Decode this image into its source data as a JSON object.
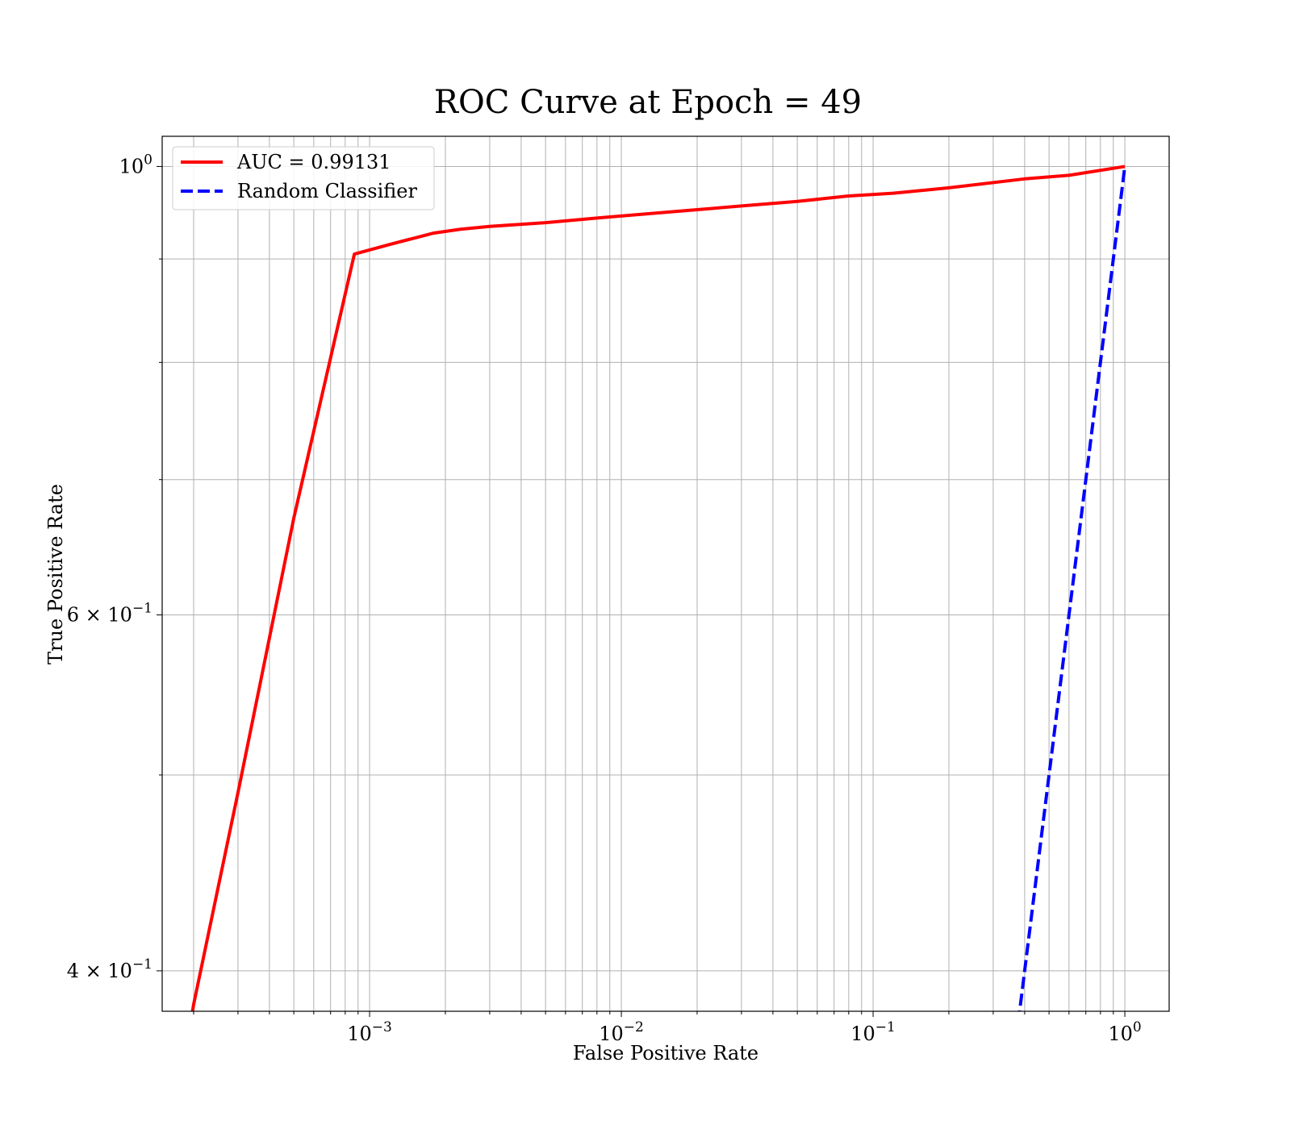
{
  "chart_data": {
    "type": "line",
    "title": "ROC Curve at Epoch = 49",
    "xlabel": "False Positive Rate",
    "ylabel": "True Positive Rate",
    "xscale": "log",
    "yscale": "log",
    "xlim": [
      0.00015,
      1.5
    ],
    "ylim": [
      0.382,
      1.035
    ],
    "grid": "both major and minor, both axes",
    "legend_position": "upper-left",
    "x_tick_labels": [
      {
        "value": 0.001,
        "base": "10",
        "exp": "−3"
      },
      {
        "value": 0.01,
        "base": "10",
        "exp": "−2"
      },
      {
        "value": 0.1,
        "base": "10",
        "exp": "−1"
      },
      {
        "value": 1,
        "base": "10",
        "exp": "0"
      }
    ],
    "y_tick_labels": [
      {
        "value": 1.0,
        "base": "10",
        "exp": "0"
      },
      {
        "value": 0.6,
        "base": "6 × 10",
        "exp": "−1"
      },
      {
        "value": 0.4,
        "base": "4 × 10",
        "exp": "−1"
      }
    ],
    "series": [
      {
        "name": "AUC = 0.99131",
        "color": "#ff0000",
        "dash": "solid",
        "points": [
          [
            0.00019,
            0.37
          ],
          [
            0.0002,
            0.385
          ],
          [
            0.0003,
            0.49
          ],
          [
            0.0005,
            0.67
          ],
          [
            0.00087,
            0.905
          ],
          [
            0.0012,
            0.915
          ],
          [
            0.0018,
            0.927
          ],
          [
            0.0023,
            0.931
          ],
          [
            0.003,
            0.934
          ],
          [
            0.005,
            0.938
          ],
          [
            0.008,
            0.943
          ],
          [
            0.012,
            0.947
          ],
          [
            0.02,
            0.952
          ],
          [
            0.03,
            0.956
          ],
          [
            0.05,
            0.961
          ],
          [
            0.08,
            0.967
          ],
          [
            0.12,
            0.97
          ],
          [
            0.2,
            0.976
          ],
          [
            0.4,
            0.986
          ],
          [
            0.6,
            0.99
          ],
          [
            1.0,
            1.0
          ]
        ]
      },
      {
        "name": "Random Classifier",
        "color": "#0000ff",
        "dash": "dashed",
        "points": [
          [
            0.37,
            0.37
          ],
          [
            1.0,
            1.0
          ]
        ]
      }
    ]
  }
}
